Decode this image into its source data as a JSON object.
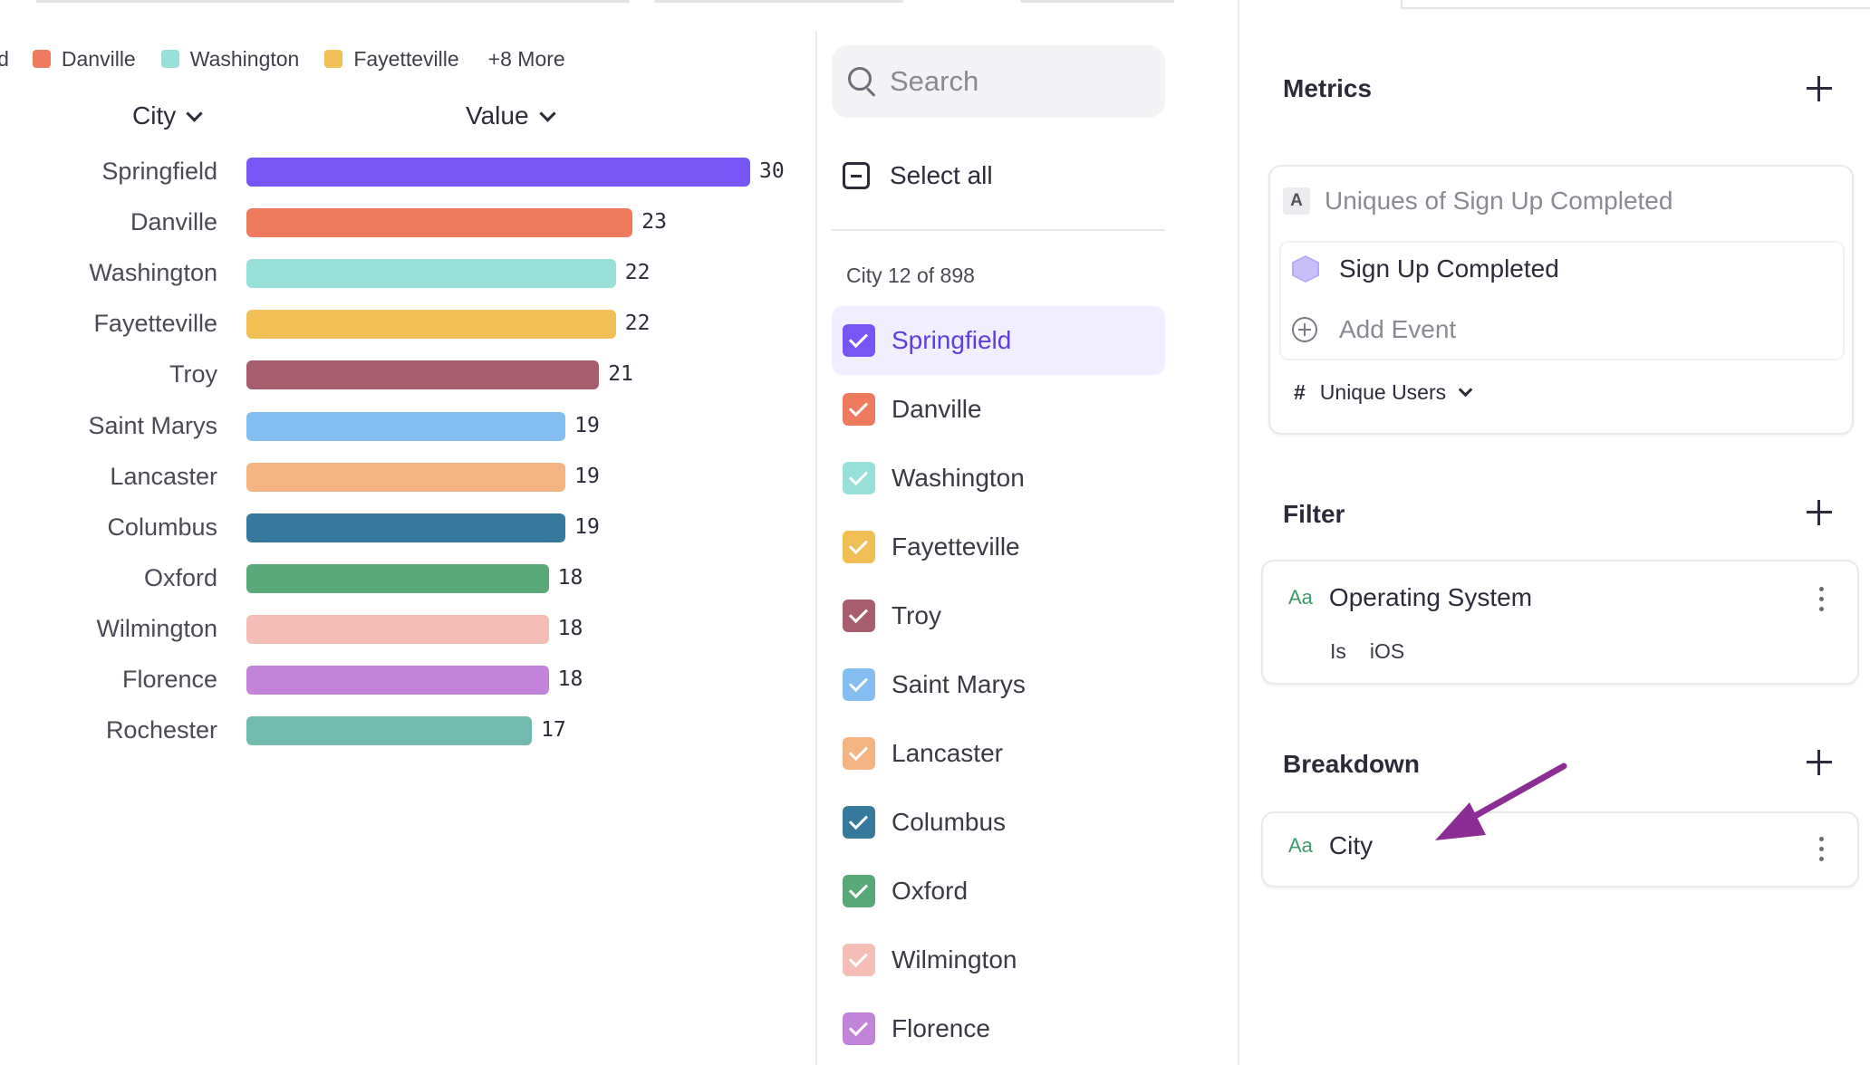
{
  "legend": {
    "cut_label": "ld",
    "items": [
      {
        "label": "Danville",
        "color": "#ef7b5e"
      },
      {
        "label": "Washington",
        "color": "#97dfd8"
      },
      {
        "label": "Fayetteville",
        "color": "#f0bf55"
      }
    ],
    "more": "+8 More"
  },
  "table_headers": {
    "city": "City",
    "value": "Value"
  },
  "chart_data": {
    "type": "bar",
    "orientation": "horizontal",
    "categories": [
      "Springfield",
      "Danville",
      "Washington",
      "Fayetteville",
      "Troy",
      "Saint Marys",
      "Lancaster",
      "Columbus",
      "Oxford",
      "Wilmington",
      "Florence",
      "Rochester"
    ],
    "values": [
      30,
      23,
      22,
      22,
      21,
      19,
      19,
      19,
      18,
      18,
      18,
      17
    ],
    "colors": [
      "#7856f6",
      "#ef7b5e",
      "#97dfd8",
      "#f0bf55",
      "#a65d6e",
      "#84bdf0",
      "#f5b484",
      "#37799d",
      "#59a877",
      "#f4bdb6",
      "#c184d8",
      "#72b9ae"
    ],
    "xlim": [
      0,
      30
    ]
  },
  "search": {
    "placeholder": "Search"
  },
  "select_all": "Select all",
  "city_count": "City 12 of 898",
  "city_list": [
    {
      "label": "Springfield",
      "color": "#7856f6",
      "active": true
    },
    {
      "label": "Danville",
      "color": "#ef7b5e"
    },
    {
      "label": "Washington",
      "color": "#97dfd8"
    },
    {
      "label": "Fayetteville",
      "color": "#f0bf55"
    },
    {
      "label": "Troy",
      "color": "#a65d6e"
    },
    {
      "label": "Saint Marys",
      "color": "#84bdf0"
    },
    {
      "label": "Lancaster",
      "color": "#f5b484"
    },
    {
      "label": "Columbus",
      "color": "#37799d"
    },
    {
      "label": "Oxford",
      "color": "#59a877"
    },
    {
      "label": "Wilmington",
      "color": "#f4bdb6"
    },
    {
      "label": "Florence",
      "color": "#c184d8"
    }
  ],
  "metrics": {
    "title": "Metrics",
    "badge": "A",
    "metric_title": "Uniques of Sign Up Completed",
    "event": "Sign Up Completed",
    "add_event": "Add Event",
    "measure_symbol": "#",
    "measure": "Unique Users"
  },
  "filter": {
    "title": "Filter",
    "type_badge": "Aa",
    "property": "Operating System",
    "operator": "Is",
    "value": "iOS"
  },
  "breakdown": {
    "title": "Breakdown",
    "type_badge": "Aa",
    "property": "City"
  },
  "annotation_color": "#8b2d94"
}
